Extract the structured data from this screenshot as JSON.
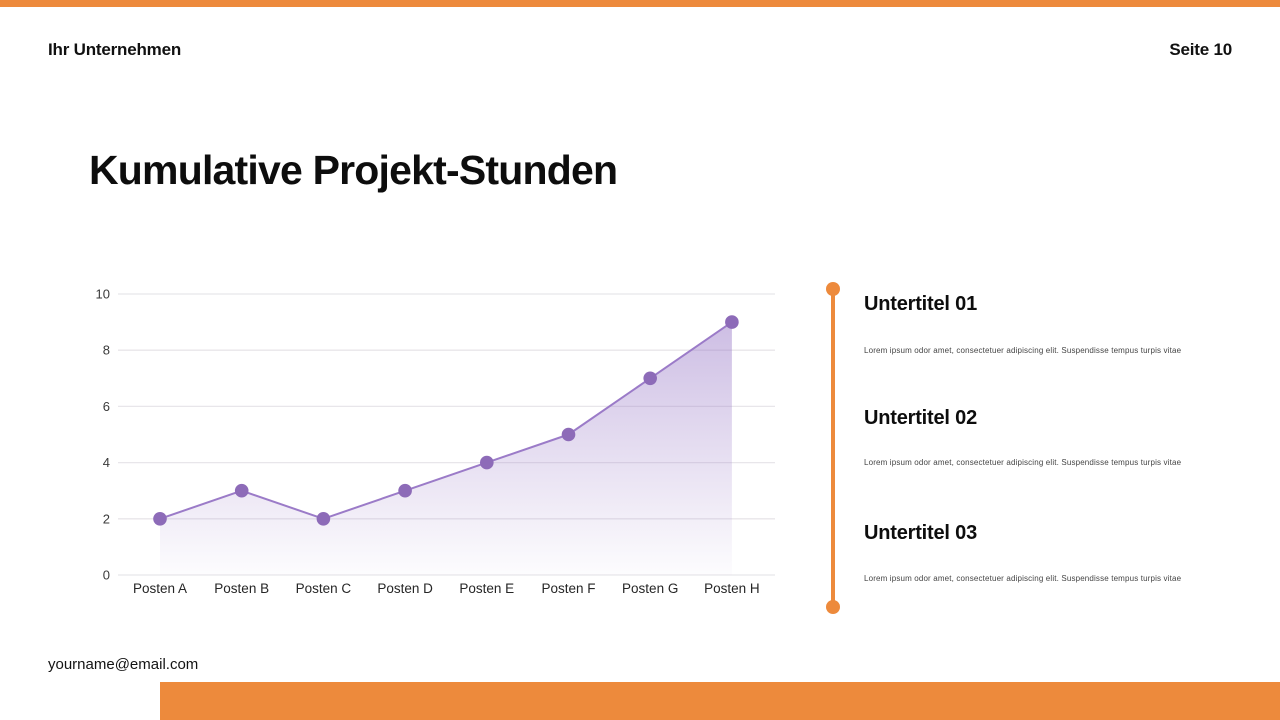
{
  "meta": {
    "company": "Ihr Unternehmen",
    "page": "Seite 10",
    "email": "yourname@email.com"
  },
  "title": "Kumulative Projekt-Stunden",
  "accent": {
    "orange": "#ED8A3C",
    "grid": "#E8E6EA",
    "axis_text": "#3a3a3a",
    "category_text": "#262626"
  },
  "chart_data": {
    "type": "area",
    "title": "Kumulative Projekt-Stunden",
    "categories": [
      "Posten A",
      "Posten B",
      "Posten C",
      "Posten D",
      "Posten E",
      "Posten F",
      "Posten G",
      "Posten H"
    ],
    "values": [
      2,
      3,
      2,
      3,
      4,
      5,
      7,
      9
    ],
    "xlabel": "",
    "ylabel": "",
    "ylim": [
      0,
      10
    ],
    "yticks": [
      0,
      2,
      4,
      6,
      8,
      10
    ],
    "grid": true,
    "legend": false,
    "line_color": "#9B7BC8",
    "dot_color": "#8D6BB8",
    "fill_color": "#9777C6"
  },
  "sidebar_items": [
    {
      "title": "Untertitel 01",
      "body": "Lorem ipsum odor amet, consectetuer adipiscing elit. Suspendisse tempus turpis vitae"
    },
    {
      "title": "Untertitel 02",
      "body": "Lorem ipsum odor amet, consectetuer adipiscing elit. Suspendisse tempus turpis vitae"
    },
    {
      "title": "Untertitel 03",
      "body": "Lorem ipsum odor amet, consectetuer adipiscing elit. Suspendisse tempus turpis vitae"
    }
  ]
}
